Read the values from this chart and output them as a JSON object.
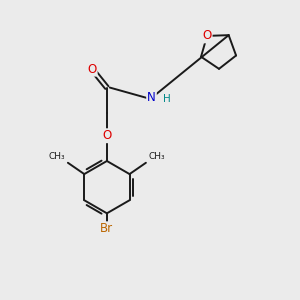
{
  "bg_color": "#ebebeb",
  "bond_color": "#1a1a1a",
  "bond_width": 1.4,
  "atom_colors": {
    "O": "#dd0000",
    "N": "#0000cc",
    "Br": "#bb6600",
    "H": "#008888",
    "C": "#1a1a1a"
  },
  "font_size_atom": 8.5,
  "font_size_small": 7.5
}
